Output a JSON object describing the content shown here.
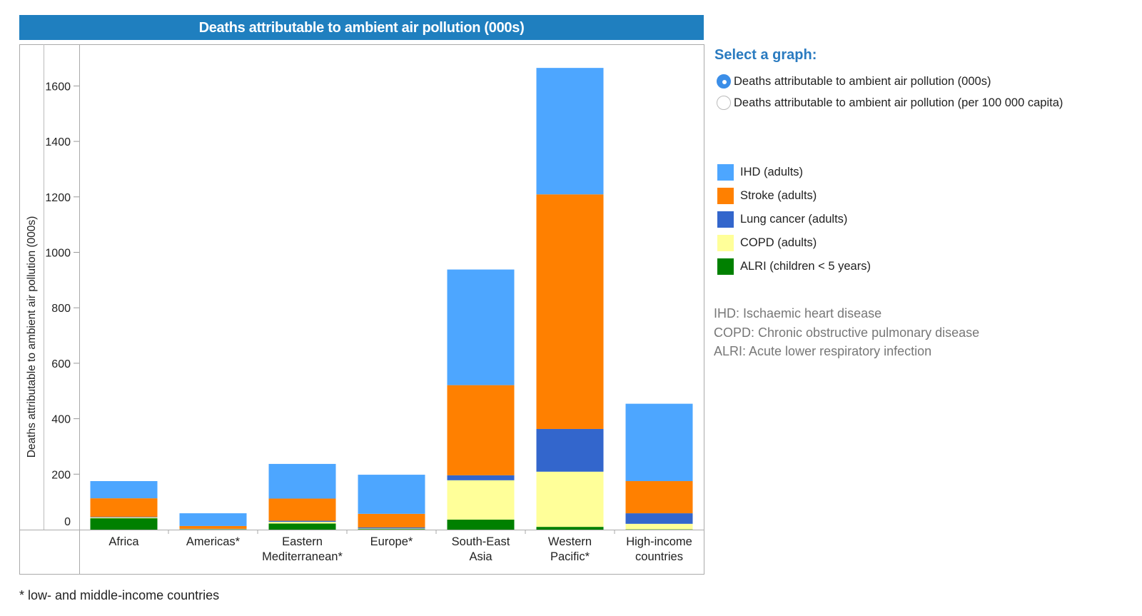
{
  "header": {
    "title": "Deaths attributable to ambient air pollution (000s)"
  },
  "selector": {
    "title": "Select a graph:",
    "options": [
      {
        "label": "Deaths attributable to ambient air pollution (000s)",
        "checked": true
      },
      {
        "label": "Deaths attributable to ambient air pollution (per 100 000 capita)",
        "checked": false
      }
    ]
  },
  "abbreviations": [
    "IHD: Ischaemic heart disease",
    "COPD: Chronic obstructive pulmonary disease",
    "ALRI: Acute lower respiratory infection"
  ],
  "footnote": "* low- and middle-income countries",
  "chart_data": {
    "type": "bar",
    "stacked": true,
    "title": "Deaths attributable to ambient air pollution (000s)",
    "xlabel": "",
    "ylabel": "Deaths attributable to ambient air pollution (000s)",
    "ylim": [
      0,
      1750
    ],
    "yticks": [
      0,
      200,
      400,
      600,
      800,
      1000,
      1200,
      1400,
      1600
    ],
    "grid": false,
    "legend_position": "right",
    "categories": [
      [
        "Africa"
      ],
      [
        "Americas*"
      ],
      [
        "Eastern",
        "Mediterranean*"
      ],
      [
        "Europe*"
      ],
      [
        "South-East",
        "Asia"
      ],
      [
        "Western",
        "Pacific*"
      ],
      [
        "High-income",
        "countries"
      ]
    ],
    "series": [
      {
        "name": "ALRI (children < 5 years)",
        "color": "#008000",
        "values": [
          41,
          1,
          22,
          2,
          36,
          10,
          1
        ]
      },
      {
        "name": "COPD (adults)",
        "color": "#ffff99",
        "values": [
          3,
          1,
          6,
          2,
          142,
          199,
          20
        ]
      },
      {
        "name": "Lung cancer (adults)",
        "color": "#3366cc",
        "values": [
          2,
          1,
          4,
          4,
          18,
          154,
          38
        ]
      },
      {
        "name": "Stroke (adults)",
        "color": "#ff8000",
        "values": [
          67,
          10,
          80,
          49,
          325,
          846,
          116
        ]
      },
      {
        "name": "IHD (adults)",
        "color": "#4da6ff",
        "values": [
          62,
          46,
          125,
          141,
          417,
          456,
          279
        ]
      }
    ],
    "legend_order": [
      "IHD (adults)",
      "Stroke (adults)",
      "Lung cancer (adults)",
      "COPD (adults)",
      "ALRI (children < 5 years)"
    ]
  }
}
